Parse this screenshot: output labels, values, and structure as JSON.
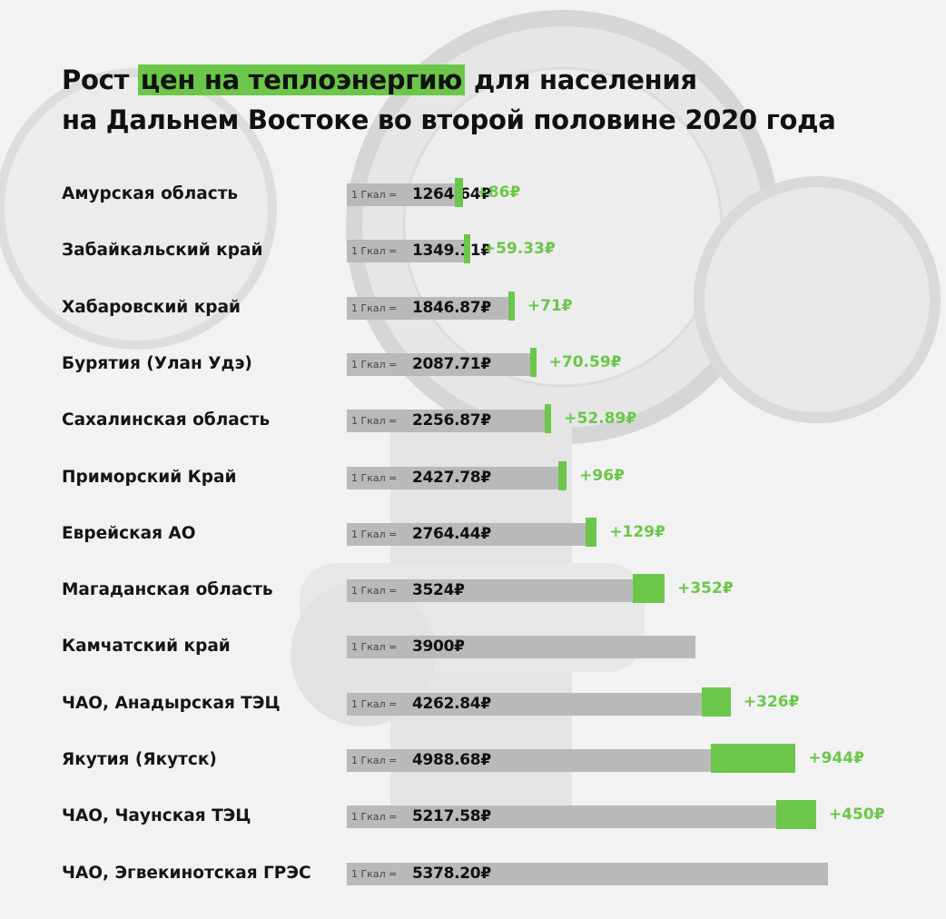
{
  "title": {
    "part1": "Рост ",
    "highlight": "цен на теплоэнергию",
    "part2": " для населения",
    "line2": "на Дальнем Востоке во второй половине 2020 года"
  },
  "colors": {
    "accent": "#6cc64a",
    "bar": "#b9b9b9",
    "text": "#111111"
  },
  "chart_data": {
    "type": "bar",
    "orientation": "horizontal",
    "value_prefix": "1 Гкал = ",
    "categories": [
      "Амурская область",
      "Забайкальский край",
      "Хабаровский край",
      "Бурятия (Улан Удэ)",
      "Сахалинская область",
      "Приморский Край",
      "Еврейская АО",
      "Магаданская область",
      "Камчатский край",
      "ЧАО, Анадырская ТЭЦ",
      "Якутия (Якутск)",
      "ЧАО, Чаунская ТЭЦ",
      "ЧАО, Эгвекинотская ГРЭС"
    ],
    "series": [
      {
        "values": [
          1264.64,
          1349.11,
          1846.87,
          2087.71,
          2256.87,
          2427.78,
          2764.44,
          3524,
          3900,
          4262.84,
          4988.68,
          5217.58,
          5378.2
        ],
        "value_labels": [
          "1264.64₽",
          "1349.11₽",
          "1846.87₽",
          "2087.71₽",
          "2256.87₽",
          "2427.78₽",
          "2764.44₽",
          "3524₽",
          "3900₽",
          "4262.84₽",
          "4988.68₽",
          "5217.58₽",
          "5378.20₽"
        ]
      },
      {
        "values": [
          86,
          59.33,
          71,
          70.59,
          52.89,
          96,
          129,
          352,
          null,
          326,
          944,
          450,
          null
        ],
        "value_labels": [
          "+86₽",
          "+59.33₽",
          "+71₽",
          "+70.59₽",
          "+52.89₽",
          "+96₽",
          "+129₽",
          "+352₽",
          "",
          "+326₽",
          "+944₽",
          "+450₽",
          ""
        ]
      }
    ]
  }
}
